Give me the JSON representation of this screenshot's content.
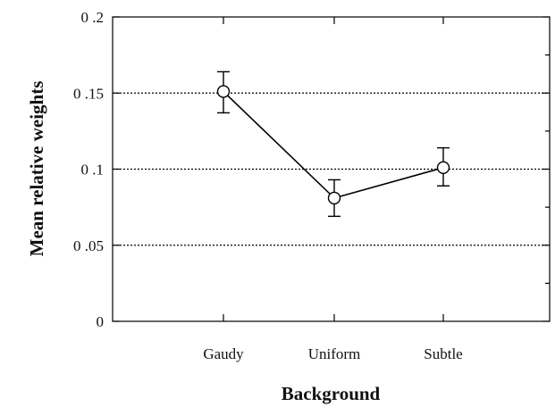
{
  "chart_data": {
    "type": "line",
    "title": "",
    "xlabel": "Background",
    "ylabel": "Mean relative weights",
    "categories": [
      "Gaudy",
      "Uniform",
      "Subtle"
    ],
    "series": [
      {
        "values": [
          0.151,
          0.081,
          0.101
        ],
        "error_low": [
          0.137,
          0.069,
          0.089
        ],
        "error_high": [
          0.164,
          0.093,
          0.114
        ],
        "marker": "open-circle"
      }
    ],
    "ylim": [
      0,
      0.2
    ],
    "yticks": [
      0,
      0.05,
      0.1,
      0.15,
      0.2
    ],
    "ytick_labels": [
      "0",
      "0 .05",
      "0 .1",
      "0 .15",
      "0 .2"
    ],
    "minor_ytick_step": 0.025,
    "grid": {
      "horizontal_dotted_at": [
        0.05,
        0.1,
        0.15
      ]
    },
    "legend": "none",
    "colors": {
      "line": "#000000",
      "marker_fill": "#ffffff"
    }
  }
}
